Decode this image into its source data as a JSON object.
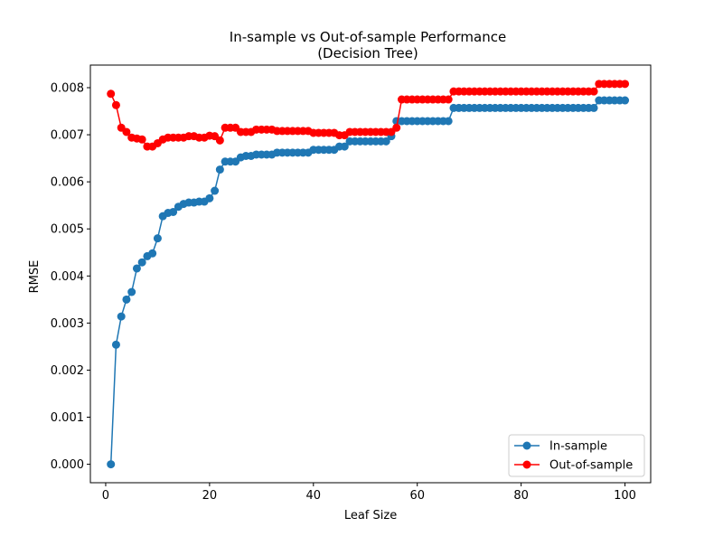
{
  "chart_data": {
    "type": "line",
    "title_line1": "In-sample vs Out-of-sample Performance",
    "title_line2": "(Decision Tree)",
    "xlabel": "Leaf Size",
    "ylabel": "RMSE",
    "xlim": [
      -2.95,
      104.95
    ],
    "ylim": [
      -0.000392,
      0.00848
    ],
    "x_ticks": [
      0,
      20,
      40,
      60,
      80,
      100
    ],
    "x_tick_labels": [
      "0",
      "20",
      "40",
      "60",
      "80",
      "100"
    ],
    "y_ticks": [
      0.0,
      0.001,
      0.002,
      0.003,
      0.004,
      0.005,
      0.006,
      0.007,
      0.008
    ],
    "y_tick_labels": [
      "0.000",
      "0.001",
      "0.002",
      "0.003",
      "0.004",
      "0.005",
      "0.006",
      "0.007",
      "0.008"
    ],
    "grid": false,
    "legend_position": "bottom-right",
    "x": [
      1,
      2,
      3,
      4,
      5,
      6,
      7,
      8,
      9,
      10,
      11,
      12,
      13,
      14,
      15,
      16,
      17,
      18,
      19,
      20,
      21,
      22,
      23,
      24,
      25,
      26,
      27,
      28,
      29,
      30,
      31,
      32,
      33,
      34,
      35,
      36,
      37,
      38,
      39,
      40,
      41,
      42,
      43,
      44,
      45,
      46,
      47,
      48,
      49,
      50,
      51,
      52,
      53,
      54,
      55,
      56,
      57,
      58,
      59,
      60,
      61,
      62,
      63,
      64,
      65,
      66,
      67,
      68,
      69,
      70,
      71,
      72,
      73,
      74,
      75,
      76,
      77,
      78,
      79,
      80,
      81,
      82,
      83,
      84,
      85,
      86,
      87,
      88,
      89,
      90,
      91,
      92,
      93,
      94,
      95,
      96,
      97,
      98,
      99,
      100
    ],
    "series": [
      {
        "name": "In-sample",
        "color": "#1f77b4",
        "values": [
          0.0,
          0.00254,
          0.00314,
          0.0035,
          0.00366,
          0.00416,
          0.00429,
          0.00442,
          0.00448,
          0.0048,
          0.00527,
          0.00534,
          0.00536,
          0.00547,
          0.00553,
          0.00556,
          0.00556,
          0.00558,
          0.00558,
          0.00565,
          0.00581,
          0.00626,
          0.00643,
          0.00643,
          0.00643,
          0.00652,
          0.00655,
          0.00655,
          0.00658,
          0.00658,
          0.00658,
          0.00658,
          0.00662,
          0.00662,
          0.00662,
          0.00662,
          0.00662,
          0.00662,
          0.00662,
          0.00668,
          0.00668,
          0.00668,
          0.00668,
          0.00668,
          0.00675,
          0.00675,
          0.00686,
          0.00686,
          0.00686,
          0.00686,
          0.00686,
          0.00686,
          0.00686,
          0.00686,
          0.00697,
          0.00729,
          0.00729,
          0.00729,
          0.00729,
          0.00729,
          0.00729,
          0.00729,
          0.00729,
          0.00729,
          0.00729,
          0.00729,
          0.00757,
          0.00757,
          0.00757,
          0.00757,
          0.00757,
          0.00757,
          0.00757,
          0.00757,
          0.00757,
          0.00757,
          0.00757,
          0.00757,
          0.00757,
          0.00757,
          0.00757,
          0.00757,
          0.00757,
          0.00757,
          0.00757,
          0.00757,
          0.00757,
          0.00757,
          0.00757,
          0.00757,
          0.00757,
          0.00757,
          0.00757,
          0.00757,
          0.00773,
          0.00773,
          0.00773,
          0.00773,
          0.00773,
          0.00773
        ]
      },
      {
        "name": "Out-of-sample",
        "color": "#ff0000",
        "values": [
          0.00787,
          0.00763,
          0.00715,
          0.00706,
          0.00694,
          0.00692,
          0.0069,
          0.00675,
          0.00675,
          0.00682,
          0.0069,
          0.00694,
          0.00694,
          0.00694,
          0.00694,
          0.00697,
          0.00697,
          0.00694,
          0.00694,
          0.00698,
          0.00697,
          0.00688,
          0.00715,
          0.00715,
          0.00715,
          0.00706,
          0.00706,
          0.00706,
          0.00711,
          0.00711,
          0.00711,
          0.00711,
          0.00708,
          0.00708,
          0.00708,
          0.00708,
          0.00708,
          0.00708,
          0.00708,
          0.00704,
          0.00704,
          0.00704,
          0.00704,
          0.00704,
          0.00699,
          0.00699,
          0.00706,
          0.00706,
          0.00706,
          0.00706,
          0.00706,
          0.00706,
          0.00706,
          0.00706,
          0.00706,
          0.00715,
          0.00775,
          0.00775,
          0.00775,
          0.00775,
          0.00775,
          0.00775,
          0.00775,
          0.00775,
          0.00775,
          0.00775,
          0.00792,
          0.00792,
          0.00792,
          0.00792,
          0.00792,
          0.00792,
          0.00792,
          0.00792,
          0.00792,
          0.00792,
          0.00792,
          0.00792,
          0.00792,
          0.00792,
          0.00792,
          0.00792,
          0.00792,
          0.00792,
          0.00792,
          0.00792,
          0.00792,
          0.00792,
          0.00792,
          0.00792,
          0.00792,
          0.00792,
          0.00792,
          0.00792,
          0.00808,
          0.00808,
          0.00808,
          0.00808,
          0.00808,
          0.00808
        ]
      }
    ]
  }
}
